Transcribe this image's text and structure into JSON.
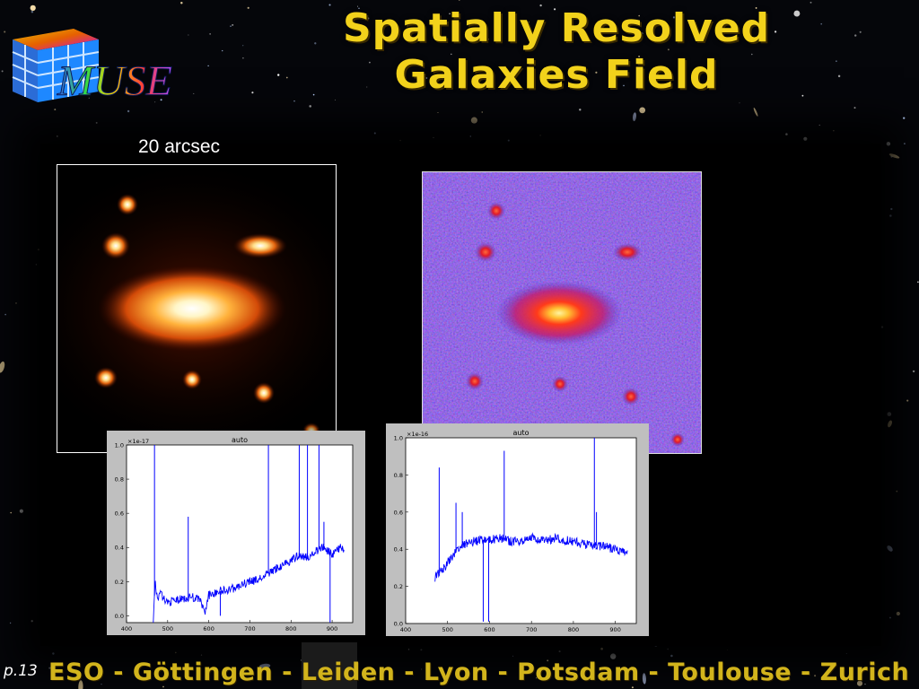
{
  "slide": {
    "title_line1": "Spatially Resolved",
    "title_line2": "Galaxies Field",
    "logo_text": "MUSE",
    "scale_label": "20 arcsec",
    "footer": "ESO - Göttingen - Leiden - Lyon - Potsdam - Toulouse - Zurich",
    "page": "p.13"
  },
  "colors": {
    "title": "#f2d21b",
    "footer": "#d2b41c",
    "spectrum_line": "#0000ff",
    "model_glow": "#ff8a1f",
    "observed_background": "#4a2fd0"
  },
  "images": {
    "model": "simulated galaxy field (heat colormap)",
    "observed": "noisy observed galaxy field (blue-red colormap)"
  },
  "chart_data": [
    {
      "type": "line",
      "title": "auto",
      "scale_label": "×1e-17",
      "xlim": [
        400,
        950
      ],
      "ylim": [
        -0.04,
        1.0
      ],
      "xticks": [
        400,
        500,
        600,
        700,
        800,
        900
      ],
      "yticks": [
        0.0,
        0.2,
        0.4,
        0.6,
        0.8,
        1.0
      ],
      "xtick_labels": [
        "400",
        "500",
        "600",
        "700",
        "800",
        "900"
      ],
      "ytick_labels": [
        "0.0",
        "0.2",
        "0.4",
        "0.6",
        "0.8",
        "1.0"
      ],
      "series": [
        {
          "x": [
            465,
            470,
            475,
            480,
            490,
            500,
            520,
            540,
            560,
            580,
            590,
            600,
            620,
            640,
            660,
            680,
            700,
            720,
            740,
            760,
            780,
            800,
            820,
            840,
            860,
            880,
            900,
            920,
            930
          ],
          "y": [
            -0.04,
            0.22,
            0.08,
            0.14,
            0.1,
            0.08,
            0.09,
            0.1,
            0.11,
            0.09,
            0.01,
            0.12,
            0.14,
            0.15,
            0.16,
            0.18,
            0.2,
            0.21,
            0.24,
            0.27,
            0.3,
            0.32,
            0.36,
            0.34,
            0.38,
            0.4,
            0.36,
            0.4,
            0.38
          ],
          "peaks": [
            [
              468,
              1.0
            ],
            [
              550,
              0.58
            ],
            [
              628,
              0.0
            ],
            [
              745,
              1.0
            ],
            [
              820,
              1.0
            ],
            [
              840,
              1.0
            ],
            [
              868,
              1.0
            ],
            [
              880,
              0.55
            ],
            [
              895,
              -0.04
            ]
          ]
        }
      ]
    },
    {
      "type": "line",
      "title": "auto",
      "scale_label": "×1e-16",
      "xlim": [
        400,
        950
      ],
      "ylim": [
        0.0,
        1.0
      ],
      "xticks": [
        400,
        500,
        600,
        700,
        800,
        900
      ],
      "yticks": [
        0.0,
        0.2,
        0.4,
        0.6,
        0.8,
        1.0
      ],
      "xtick_labels": [
        "400",
        "500",
        "600",
        "700",
        "800",
        "900"
      ],
      "ytick_labels": [
        "0.0",
        "0.2",
        "0.4",
        "0.6",
        "0.8",
        "1.0"
      ],
      "series": [
        {
          "x": [
            470,
            480,
            490,
            500,
            510,
            520,
            530,
            540,
            560,
            580,
            600,
            620,
            640,
            660,
            680,
            700,
            720,
            740,
            760,
            780,
            800,
            820,
            840,
            860,
            880,
            900,
            920,
            930
          ],
          "y": [
            0.25,
            0.27,
            0.29,
            0.33,
            0.36,
            0.39,
            0.41,
            0.43,
            0.44,
            0.45,
            0.45,
            0.46,
            0.45,
            0.44,
            0.45,
            0.46,
            0.45,
            0.45,
            0.46,
            0.45,
            0.44,
            0.43,
            0.42,
            0.42,
            0.41,
            0.4,
            0.38,
            0.37
          ],
          "peaks": [
            [
              480,
              0.84
            ],
            [
              520,
              0.65
            ],
            [
              535,
              0.6
            ],
            [
              585,
              0.01
            ],
            [
              598,
              0.01
            ],
            [
              635,
              0.93
            ],
            [
              850,
              1.0
            ],
            [
              855,
              0.6
            ]
          ]
        }
      ]
    }
  ]
}
